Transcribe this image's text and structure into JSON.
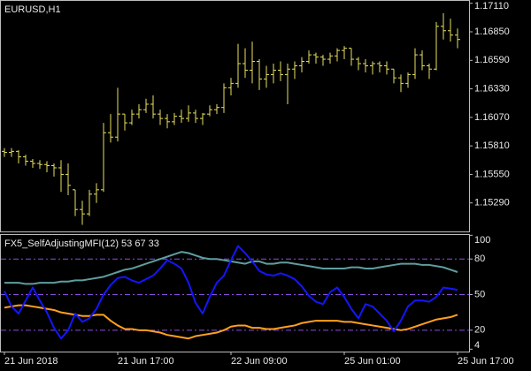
{
  "chart_data": [
    {
      "type": "ohlc",
      "title": "EURUSD,H1",
      "color": "#e8e060",
      "ylim": [
        1.1503,
        1.1714
      ],
      "yticks": [
        {
          "value": 1.1711,
          "label": "1.17110"
        },
        {
          "value": 1.1685,
          "label": "1.16850"
        },
        {
          "value": 1.1659,
          "label": "1.16590"
        },
        {
          "value": 1.1633,
          "label": "1.16330"
        },
        {
          "value": 1.1607,
          "label": "1.16070"
        },
        {
          "value": 1.1581,
          "label": "1.15810"
        },
        {
          "value": 1.1555,
          "label": "1.15550"
        },
        {
          "value": 1.1529,
          "label": "1.15290"
        }
      ],
      "open": [
        1.1576,
        1.1575,
        1.1576,
        1.1571,
        1.1567,
        1.1565,
        1.1564,
        1.1563,
        1.1561,
        1.1555,
        1.1541,
        1.1523,
        1.1519,
        1.1537,
        1.1541,
        1.1593,
        1.1589,
        1.161,
        1.1602,
        1.161,
        1.1614,
        1.1619,
        1.161,
        1.1606,
        1.1603,
        1.1608,
        1.1606,
        1.1611,
        1.1606,
        1.161,
        1.1614,
        1.1616,
        1.1634,
        1.1638,
        1.1656,
        1.165,
        1.1658,
        1.1642,
        1.1646,
        1.165,
        1.1646,
        1.1651,
        1.1654,
        1.1658,
        1.1664,
        1.1662,
        1.166,
        1.1663,
        1.1668,
        1.167,
        1.166,
        1.1656,
        1.1654,
        1.1656,
        1.1654,
        1.1651,
        1.1643,
        1.1638,
        1.1646,
        1.1664,
        1.1654,
        1.1651,
        1.169,
        1.1686,
        1.1682
      ],
      "high": [
        1.1579,
        1.1579,
        1.1577,
        1.1573,
        1.1569,
        1.1568,
        1.1567,
        1.1565,
        1.1568,
        1.1565,
        1.1541,
        1.1531,
        1.1541,
        1.1547,
        1.1602,
        1.161,
        1.1634,
        1.161,
        1.1614,
        1.1619,
        1.1624,
        1.1627,
        1.1614,
        1.161,
        1.1611,
        1.1614,
        1.1618,
        1.1614,
        1.1611,
        1.1618,
        1.1619,
        1.1638,
        1.1643,
        1.1674,
        1.167,
        1.1676,
        1.166,
        1.1654,
        1.1656,
        1.1658,
        1.1656,
        1.1658,
        1.1662,
        1.1668,
        1.1666,
        1.1664,
        1.1666,
        1.167,
        1.1672,
        1.167,
        1.1662,
        1.166,
        1.1658,
        1.1658,
        1.1658,
        1.1651,
        1.1646,
        1.1648,
        1.167,
        1.1668,
        1.1656,
        1.1694,
        1.1702,
        1.1697,
        1.1688
      ],
      "low": [
        1.1571,
        1.1571,
        1.1565,
        1.1563,
        1.1561,
        1.156,
        1.1557,
        1.1553,
        1.1539,
        1.1536,
        1.1517,
        1.1509,
        1.1517,
        1.1529,
        1.1539,
        1.1584,
        1.1585,
        1.1595,
        1.16,
        1.1606,
        1.1611,
        1.1606,
        1.16,
        1.1597,
        1.16,
        1.1602,
        1.1603,
        1.1602,
        1.16,
        1.1608,
        1.161,
        1.1611,
        1.1627,
        1.1634,
        1.1643,
        1.1638,
        1.1632,
        1.1634,
        1.1638,
        1.164,
        1.1619,
        1.1642,
        1.1648,
        1.1656,
        1.1656,
        1.1654,
        1.1656,
        1.1658,
        1.166,
        1.1654,
        1.165,
        1.1648,
        1.1646,
        1.1648,
        1.1646,
        1.1638,
        1.163,
        1.1634,
        1.1642,
        1.165,
        1.1642,
        1.165,
        1.1678,
        1.1676,
        1.167
      ],
      "close": [
        1.1575,
        1.1576,
        1.1571,
        1.1567,
        1.1565,
        1.1564,
        1.1563,
        1.1561,
        1.1555,
        1.1545,
        1.1523,
        1.1519,
        1.1537,
        1.1541,
        1.1593,
        1.1589,
        1.161,
        1.1602,
        1.161,
        1.1614,
        1.1619,
        1.161,
        1.1606,
        1.1603,
        1.1608,
        1.1606,
        1.1611,
        1.1606,
        1.161,
        1.1614,
        1.1616,
        1.1634,
        1.1638,
        1.1656,
        1.165,
        1.1658,
        1.1642,
        1.1646,
        1.165,
        1.1646,
        1.1651,
        1.1654,
        1.1658,
        1.1664,
        1.1662,
        1.166,
        1.1663,
        1.1668,
        1.167,
        1.166,
        1.1656,
        1.1654,
        1.1656,
        1.1654,
        1.1651,
        1.1643,
        1.1638,
        1.1646,
        1.1664,
        1.1654,
        1.1651,
        1.169,
        1.1686,
        1.1682,
        1.1678
      ]
    },
    {
      "type": "line",
      "title": "FX5_SelfAdjustingMFI(12) 53 67 33",
      "categories": [
        "21 Jun 2018",
        null,
        null,
        null,
        null,
        null,
        null,
        null,
        null,
        null,
        null,
        null,
        null,
        null,
        null,
        null,
        "21 Jun 17:00",
        null,
        null,
        null,
        null,
        null,
        null,
        null,
        null,
        null,
        null,
        null,
        null,
        null,
        null,
        null,
        "22 Jun 09:00",
        null,
        null,
        null,
        null,
        null,
        null,
        null,
        null,
        null,
        null,
        null,
        null,
        null,
        null,
        null,
        "25 Jun 01:00",
        null,
        null,
        null,
        null,
        null,
        null,
        null,
        null,
        null,
        null,
        null,
        null,
        null,
        null,
        null,
        "25 Jun 17:00"
      ],
      "ylim": [
        2,
        101
      ],
      "yticks": [
        100,
        80,
        50,
        20,
        4
      ],
      "levels": [
        80,
        50,
        20
      ],
      "level_color": "#8a4fe0",
      "series": [
        {
          "color": "#5f9ea0",
          "values": [
            60,
            60,
            60,
            59,
            59,
            60,
            60,
            60,
            61,
            61,
            62,
            62,
            63,
            64,
            65,
            67,
            69,
            71,
            72,
            74,
            76,
            78,
            80,
            82,
            84,
            86,
            85,
            83,
            81,
            80,
            80,
            79,
            78,
            77,
            76,
            78,
            78,
            76,
            76,
            77,
            77,
            76,
            75,
            74,
            73,
            72,
            72,
            72,
            72,
            73,
            73,
            72,
            72,
            73,
            74,
            75,
            76,
            76,
            76,
            75,
            75,
            74,
            73,
            71,
            69
          ]
        },
        {
          "color": "#ffa020",
          "values": [
            39,
            40,
            41,
            41,
            40,
            39,
            38,
            37,
            35,
            34,
            33,
            32,
            32,
            33,
            33,
            28,
            24,
            21,
            21,
            20,
            20,
            19,
            18,
            16,
            15,
            14,
            13,
            15,
            16,
            17,
            18,
            20,
            23,
            24,
            24,
            22,
            22,
            21,
            21,
            22,
            23,
            24,
            26,
            27,
            28,
            28,
            28,
            28,
            27,
            27,
            26,
            25,
            24,
            23,
            22,
            21,
            20,
            21,
            23,
            25,
            27,
            29,
            30,
            31,
            33
          ]
        },
        {
          "color": "#1515ff",
          "values": [
            53,
            40,
            34,
            45,
            56,
            45,
            35,
            22,
            13,
            20,
            34,
            27,
            30,
            38,
            50,
            58,
            64,
            65,
            62,
            60,
            63,
            66,
            72,
            79,
            76,
            72,
            60,
            43,
            34,
            48,
            60,
            66,
            79,
            91,
            85,
            78,
            70,
            67,
            66,
            68,
            66,
            63,
            57,
            49,
            44,
            42,
            52,
            56,
            48,
            38,
            30,
            42,
            40,
            34,
            28,
            19,
            28,
            40,
            45,
            45,
            44,
            48,
            56,
            55,
            54
          ]
        }
      ]
    }
  ]
}
